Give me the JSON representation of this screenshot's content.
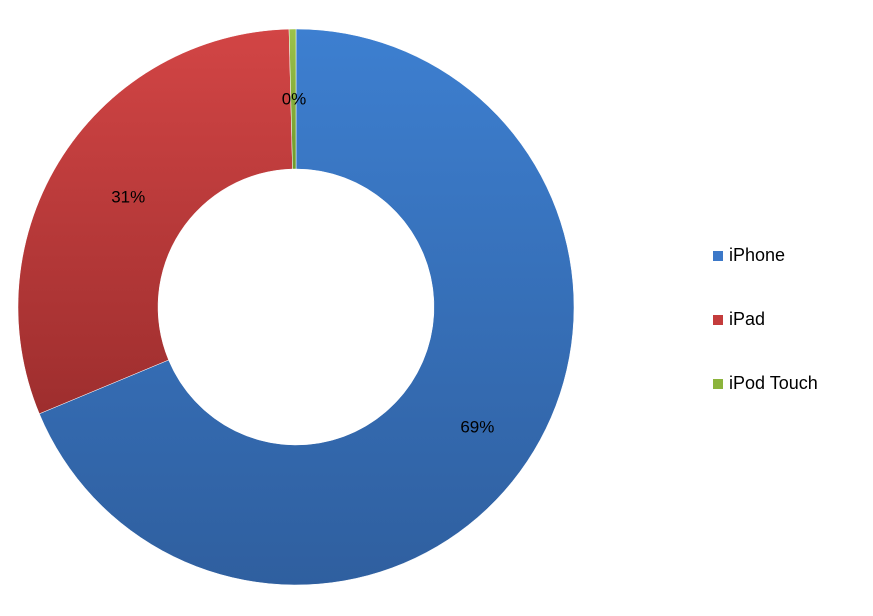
{
  "chart_data": {
    "type": "pie",
    "variant": "donut",
    "title": "",
    "categories": [
      "iPhone",
      "iPad",
      "iPod Touch"
    ],
    "values": [
      69,
      31,
      0.4
    ],
    "data_labels": [
      "69%",
      "31%",
      "0%"
    ],
    "colors": [
      "#3c78c8",
      "#c43c3c",
      "#8cb43c"
    ],
    "legend": {
      "placement": "right",
      "entries": [
        "iPhone",
        "iPad",
        "iPod Touch"
      ]
    }
  }
}
